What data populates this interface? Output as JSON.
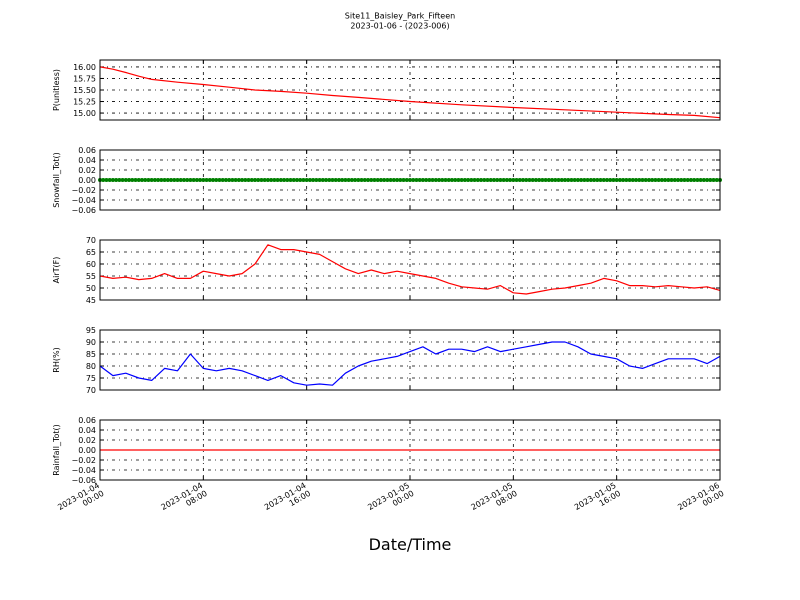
{
  "figure": {
    "title": "Site11_Baisley_Park_Fifteen",
    "subtitle": "2023-01-06 - (2023-006)",
    "xlabel": "Date/Time"
  },
  "chart_data": [
    {
      "type": "line",
      "ylabel": "P(unitless)",
      "ylim": [
        14.85,
        16.15
      ],
      "yticks": [
        15.0,
        15.25,
        15.5,
        15.75,
        16.0
      ],
      "ytick_labels": [
        "15.00",
        "15.25",
        "15.50",
        "15.75",
        "16.00"
      ],
      "xlim": [
        "2023-01-04 00:00",
        "2023-01-06 00:00"
      ],
      "grid": true,
      "series": [
        {
          "color": "#ff0000",
          "x": [
            "2023-01-04 00:00",
            "2023-01-04 01:00",
            "2023-01-04 02:00",
            "2023-01-04 03:00",
            "2023-01-04 04:00",
            "2023-01-04 06:00",
            "2023-01-04 08:00",
            "2023-01-04 10:00",
            "2023-01-04 12:00",
            "2023-01-04 14:00",
            "2023-01-04 16:00",
            "2023-01-04 18:00",
            "2023-01-04 20:00",
            "2023-01-05 00:00",
            "2023-01-05 04:00",
            "2023-01-05 08:00",
            "2023-01-05 12:00",
            "2023-01-05 16:00",
            "2023-01-05 20:00",
            "2023-01-05 22:00",
            "2023-01-06 00:00"
          ],
          "y": [
            16.0,
            15.95,
            15.88,
            15.8,
            15.73,
            15.67,
            15.62,
            15.56,
            15.5,
            15.47,
            15.43,
            15.38,
            15.34,
            15.25,
            15.18,
            15.12,
            15.07,
            15.02,
            14.97,
            14.95,
            14.9
          ]
        }
      ]
    },
    {
      "type": "scatter",
      "ylabel": "Snowfall_Tot()",
      "ylim": [
        -0.06,
        0.06
      ],
      "yticks": [
        -0.06,
        -0.04,
        -0.02,
        0.0,
        0.02,
        0.04,
        0.06
      ],
      "ytick_labels": [
        "−0.06",
        "−0.04",
        "−0.02",
        "0.00",
        "0.02",
        "0.04",
        "0.06"
      ],
      "xlim": [
        "2023-01-04 00:00",
        "2023-01-06 00:00"
      ],
      "grid": true,
      "series": [
        {
          "color": "#008000",
          "marker": "o",
          "x_start": "2023-01-04 00:00",
          "x_end": "2023-01-06 00:00",
          "interval_minutes": 15,
          "value": 0.0
        }
      ]
    },
    {
      "type": "line",
      "ylabel": "AirT(F)",
      "ylim": [
        45,
        70
      ],
      "yticks": [
        45,
        50,
        55,
        60,
        65,
        70
      ],
      "ytick_labels": [
        "45",
        "50",
        "55",
        "60",
        "65",
        "70"
      ],
      "xlim": [
        "2023-01-04 00:00",
        "2023-01-06 00:00"
      ],
      "grid": true,
      "series": [
        {
          "color": "#ff0000",
          "x": [
            "2023-01-04 00:00",
            "2023-01-04 01:00",
            "2023-01-04 02:00",
            "2023-01-04 03:00",
            "2023-01-04 04:00",
            "2023-01-04 05:00",
            "2023-01-04 06:00",
            "2023-01-04 07:00",
            "2023-01-04 08:00",
            "2023-01-04 09:00",
            "2023-01-04 10:00",
            "2023-01-04 11:00",
            "2023-01-04 12:00",
            "2023-01-04 13:00",
            "2023-01-04 14:00",
            "2023-01-04 15:00",
            "2023-01-04 16:00",
            "2023-01-04 17:00",
            "2023-01-04 18:00",
            "2023-01-04 19:00",
            "2023-01-04 20:00",
            "2023-01-04 21:00",
            "2023-01-04 22:00",
            "2023-01-04 23:00",
            "2023-01-05 00:00",
            "2023-01-05 01:00",
            "2023-01-05 02:00",
            "2023-01-05 03:00",
            "2023-01-05 04:00",
            "2023-01-05 05:00",
            "2023-01-05 06:00",
            "2023-01-05 07:00",
            "2023-01-05 08:00",
            "2023-01-05 09:00",
            "2023-01-05 10:00",
            "2023-01-05 11:00",
            "2023-01-05 12:00",
            "2023-01-05 13:00",
            "2023-01-05 14:00",
            "2023-01-05 15:00",
            "2023-01-05 16:00",
            "2023-01-05 17:00",
            "2023-01-05 18:00",
            "2023-01-05 19:00",
            "2023-01-05 20:00",
            "2023-01-05 21:00",
            "2023-01-05 22:00",
            "2023-01-05 23:00",
            "2023-01-06 00:00"
          ],
          "y": [
            55,
            54,
            54.5,
            53.5,
            54,
            56,
            54,
            54,
            57,
            56,
            55,
            56,
            60,
            68,
            66,
            66,
            65,
            64,
            61,
            58,
            56,
            57.5,
            56,
            57,
            56,
            55,
            54,
            52,
            50.5,
            50,
            49.5,
            51,
            48,
            47.5,
            48.5,
            49.5,
            50,
            51,
            52,
            54,
            53,
            51,
            51,
            50.5,
            51,
            50.5,
            50,
            50.5,
            49
          ]
        }
      ]
    },
    {
      "type": "line",
      "ylabel": "RH(%)",
      "ylim": [
        70,
        95
      ],
      "yticks": [
        70,
        75,
        80,
        85,
        90,
        95
      ],
      "ytick_labels": [
        "70",
        "75",
        "80",
        "85",
        "90",
        "95"
      ],
      "xlim": [
        "2023-01-04 00:00",
        "2023-01-06 00:00"
      ],
      "grid": true,
      "series": [
        {
          "color": "#0000ff",
          "x": [
            "2023-01-04 00:00",
            "2023-01-04 01:00",
            "2023-01-04 02:00",
            "2023-01-04 03:00",
            "2023-01-04 04:00",
            "2023-01-04 05:00",
            "2023-01-04 06:00",
            "2023-01-04 07:00",
            "2023-01-04 08:00",
            "2023-01-04 09:00",
            "2023-01-04 10:00",
            "2023-01-04 11:00",
            "2023-01-04 12:00",
            "2023-01-04 13:00",
            "2023-01-04 14:00",
            "2023-01-04 15:00",
            "2023-01-04 16:00",
            "2023-01-04 17:00",
            "2023-01-04 18:00",
            "2023-01-04 19:00",
            "2023-01-04 20:00",
            "2023-01-04 21:00",
            "2023-01-04 22:00",
            "2023-01-04 23:00",
            "2023-01-05 00:00",
            "2023-01-05 01:00",
            "2023-01-05 02:00",
            "2023-01-05 03:00",
            "2023-01-05 04:00",
            "2023-01-05 05:00",
            "2023-01-05 06:00",
            "2023-01-05 07:00",
            "2023-01-05 08:00",
            "2023-01-05 09:00",
            "2023-01-05 10:00",
            "2023-01-05 11:00",
            "2023-01-05 12:00",
            "2023-01-05 13:00",
            "2023-01-05 14:00",
            "2023-01-05 15:00",
            "2023-01-05 16:00",
            "2023-01-05 17:00",
            "2023-01-05 18:00",
            "2023-01-05 19:00",
            "2023-01-05 20:00",
            "2023-01-05 21:00",
            "2023-01-05 22:00",
            "2023-01-05 23:00",
            "2023-01-06 00:00"
          ],
          "y": [
            80,
            76,
            77,
            75,
            74,
            79,
            78,
            85,
            79,
            78,
            79,
            78,
            76,
            74,
            76,
            73,
            72,
            72.5,
            72,
            77,
            80,
            82,
            83,
            84,
            86,
            88,
            85,
            87,
            87,
            86,
            88,
            86,
            87,
            88,
            89,
            90,
            90,
            88,
            85,
            84,
            83,
            80,
            79,
            81,
            83,
            83,
            83,
            81,
            84
          ]
        }
      ]
    },
    {
      "type": "line",
      "ylabel": "Rainfall_Tot()",
      "ylim": [
        -0.06,
        0.06
      ],
      "yticks": [
        -0.06,
        -0.04,
        -0.02,
        0.0,
        0.02,
        0.04,
        0.06
      ],
      "ytick_labels": [
        "−0.06",
        "−0.04",
        "−0.02",
        "0.00",
        "0.02",
        "0.04",
        "0.06"
      ],
      "xlim": [
        "2023-01-04 00:00",
        "2023-01-06 00:00"
      ],
      "grid": true,
      "series": [
        {
          "color": "#ff0000",
          "x": [
            "2023-01-04 00:00",
            "2023-01-06 00:00"
          ],
          "y": [
            0.0,
            0.0
          ]
        }
      ]
    }
  ],
  "xaxis": {
    "ticks": [
      "2023-01-04 00:00",
      "2023-01-04 08:00",
      "2023-01-04 16:00",
      "2023-01-05 00:00",
      "2023-01-05 08:00",
      "2023-01-05 16:00",
      "2023-01-06 00:00"
    ],
    "tick_labels": [
      [
        "2023-01-04",
        "00:00"
      ],
      [
        "2023-01-04",
        "08:00"
      ],
      [
        "2023-01-04",
        "16:00"
      ],
      [
        "2023-01-05",
        "00:00"
      ],
      [
        "2023-01-05",
        "08:00"
      ],
      [
        "2023-01-05",
        "16:00"
      ],
      [
        "2023-01-06",
        "00:00"
      ]
    ]
  }
}
